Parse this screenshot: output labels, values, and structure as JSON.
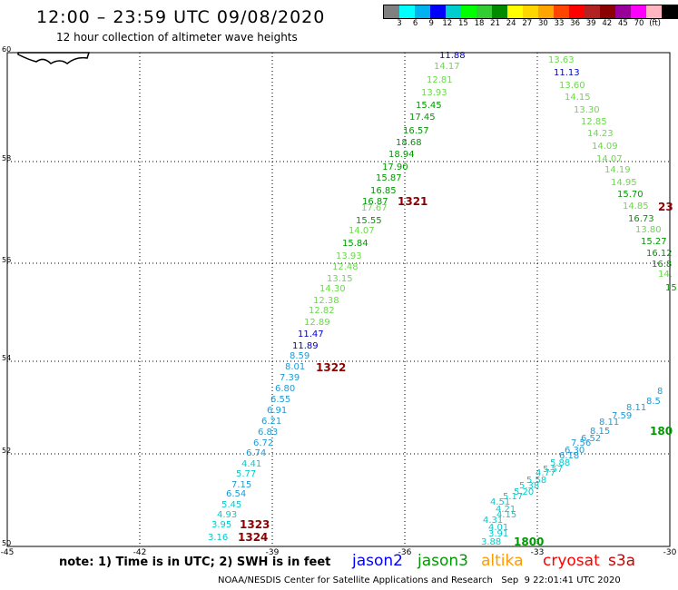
{
  "header": {
    "title": "12:00 – 23:59 UTC 09/08/2020",
    "subtitle": "12 hour collection of altimeter wave heights"
  },
  "colorbar": {
    "colors": [
      "#808080",
      "#00ffff",
      "#00b2ee",
      "#0000ff",
      "#00cdcd",
      "#00ff00",
      "#32cd32",
      "#008b00",
      "#ffff00",
      "#ffd700",
      "#ffa500",
      "#ff4500",
      "#ff0000",
      "#b22222",
      "#8b0000",
      "#990099",
      "#ff00ff",
      "#ffb6c1",
      "#000000"
    ],
    "labels": [
      "3",
      "6",
      "9",
      "12",
      "15",
      "18",
      "21",
      "24",
      "27",
      "30",
      "33",
      "36",
      "39",
      "42",
      "45",
      "70",
      "(ft)"
    ]
  },
  "axes": {
    "lat_labels": [
      "60",
      "58",
      "56",
      "54",
      "52",
      "50"
    ],
    "lon_labels": [
      "-45",
      "-42",
      "-39",
      "-36",
      "-33",
      "-30"
    ]
  },
  "tracks": {
    "colors": {
      "cyan": "#00cdcd",
      "sky": "#1e9bd7",
      "blue": "#0000cd",
      "lime": "#66dd44",
      "green": "#009900",
      "dkred": "#8b0000"
    },
    "readings": [
      {
        "t": "11.88",
        "c": "blue"
      },
      {
        "t": "14.17",
        "c": "lime"
      },
      {
        "t": "12.81",
        "c": "lime"
      },
      {
        "t": "13.93",
        "c": "lime"
      },
      {
        "t": "15.45",
        "c": "green"
      },
      {
        "t": "17.45",
        "c": "green"
      },
      {
        "t": "16.57",
        "c": "green"
      },
      {
        "t": "18.68",
        "c": "green"
      },
      {
        "t": "18.94",
        "c": "green"
      },
      {
        "t": "17.90",
        "c": "green"
      },
      {
        "t": "15.87",
        "c": "green"
      },
      {
        "t": "16.85",
        "c": "green"
      },
      {
        "t": "16.87",
        "c": "green"
      },
      {
        "t": "17.67",
        "c": "lime"
      },
      {
        "t": "15.55",
        "c": "green"
      },
      {
        "t": "14.07",
        "c": "lime"
      },
      {
        "t": "15.84",
        "c": "green"
      },
      {
        "t": "13.93",
        "c": "lime"
      },
      {
        "t": "12.48",
        "c": "lime"
      },
      {
        "t": "13.15",
        "c": "lime"
      },
      {
        "t": "14.30",
        "c": "lime"
      },
      {
        "t": "12.38",
        "c": "lime"
      },
      {
        "t": "12.82",
        "c": "lime"
      },
      {
        "t": "12.89",
        "c": "lime"
      },
      {
        "t": "11.47",
        "c": "blue"
      },
      {
        "t": "11.89",
        "c": "blue"
      },
      {
        "t": "8.59",
        "c": "sky"
      },
      {
        "t": "8.01",
        "c": "sky"
      },
      {
        "t": "7.39",
        "c": "sky"
      },
      {
        "t": "6.80",
        "c": "sky"
      },
      {
        "t": "6.55",
        "c": "sky"
      },
      {
        "t": "6.91",
        "c": "sky"
      },
      {
        "t": "6.21",
        "c": "sky"
      },
      {
        "t": "6.83",
        "c": "sky"
      },
      {
        "t": "6.72",
        "c": "sky"
      },
      {
        "t": "6.74",
        "c": "sky"
      },
      {
        "t": "4.41",
        "c": "cyan"
      },
      {
        "t": "5.77",
        "c": "cyan"
      },
      {
        "t": "7.15",
        "c": "sky"
      },
      {
        "t": "6.54",
        "c": "sky"
      },
      {
        "t": "5.45",
        "c": "cyan"
      },
      {
        "t": "4.93",
        "c": "cyan"
      },
      {
        "t": "3.95",
        "c": "cyan"
      },
      {
        "t": "3.16",
        "c": "cyan"
      },
      {
        "t": "13.63",
        "c": "lime"
      },
      {
        "t": "11.13",
        "c": "blue"
      },
      {
        "t": "13.60",
        "c": "lime"
      },
      {
        "t": "14.15",
        "c": "lime"
      },
      {
        "t": "13.30",
        "c": "lime"
      },
      {
        "t": "12.85",
        "c": "lime"
      },
      {
        "t": "14.23",
        "c": "lime"
      },
      {
        "t": "14.09",
        "c": "lime"
      },
      {
        "t": "14.07",
        "c": "lime"
      },
      {
        "t": "14.19",
        "c": "lime"
      },
      {
        "t": "14.95",
        "c": "lime"
      },
      {
        "t": "15.70",
        "c": "green"
      },
      {
        "t": "14.85",
        "c": "lime"
      },
      {
        "t": "16.73",
        "c": "green"
      },
      {
        "t": "13.80",
        "c": "lime"
      },
      {
        "t": "15.27",
        "c": "green"
      },
      {
        "t": "16.12",
        "c": "green"
      },
      {
        "t": "16.8",
        "c": "green"
      },
      {
        "t": "14.",
        "c": "lime"
      },
      {
        "t": "15",
        "c": "green"
      },
      {
        "t": "3.88",
        "c": "cyan"
      },
      {
        "t": "3.91",
        "c": "cyan"
      },
      {
        "t": "4.01",
        "c": "cyan"
      },
      {
        "t": "4.31",
        "c": "cyan"
      },
      {
        "t": "4.15",
        "c": "cyan"
      },
      {
        "t": "4.21",
        "c": "cyan"
      },
      {
        "t": "4.51",
        "c": "cyan"
      },
      {
        "t": "5.17",
        "c": "cyan"
      },
      {
        "t": "5.20",
        "c": "cyan"
      },
      {
        "t": "5.38",
        "c": "cyan"
      },
      {
        "t": "5.58",
        "c": "cyan"
      },
      {
        "t": "4.77",
        "c": "cyan"
      },
      {
        "t": "5.57",
        "c": "cyan"
      },
      {
        "t": "5.88",
        "c": "cyan"
      },
      {
        "t": "6.18",
        "c": "sky"
      },
      {
        "t": "6.30",
        "c": "sky"
      },
      {
        "t": "7.56",
        "c": "sky"
      },
      {
        "t": "6.52",
        "c": "sky"
      },
      {
        "t": "8.15",
        "c": "sky"
      },
      {
        "t": "8.11",
        "c": "sky"
      },
      {
        "t": "7.59",
        "c": "sky"
      },
      {
        "t": "8.11",
        "c": "sky"
      },
      {
        "t": "8.5",
        "c": "sky"
      },
      {
        "t": "8",
        "c": "sky"
      }
    ],
    "passes": [
      {
        "t": "1321",
        "c": "dkred"
      },
      {
        "t": "1322",
        "c": "dkred"
      },
      {
        "t": "1323",
        "c": "dkred"
      },
      {
        "t": "1324",
        "c": "dkred"
      },
      {
        "t": "23",
        "c": "dkred"
      },
      {
        "t": "1800",
        "c": "green"
      },
      {
        "t": "180",
        "c": "green"
      }
    ]
  },
  "note": "note: 1) Time is in UTC; 2) SWH is in feet",
  "satellites": [
    {
      "name": "jason2",
      "color": "#0000ff"
    },
    {
      "name": "jason3",
      "color": "#009900"
    },
    {
      "name": "altika",
      "color": "#ff9900"
    },
    {
      "name": "cryosat",
      "color": "#ff0000"
    },
    {
      "name": "s3a",
      "color": "#cc0000"
    }
  ],
  "footer": "NOAA/NESDIS Center for Satellite Applications and Research   Sep  9 22:01:41 UTC 2020"
}
